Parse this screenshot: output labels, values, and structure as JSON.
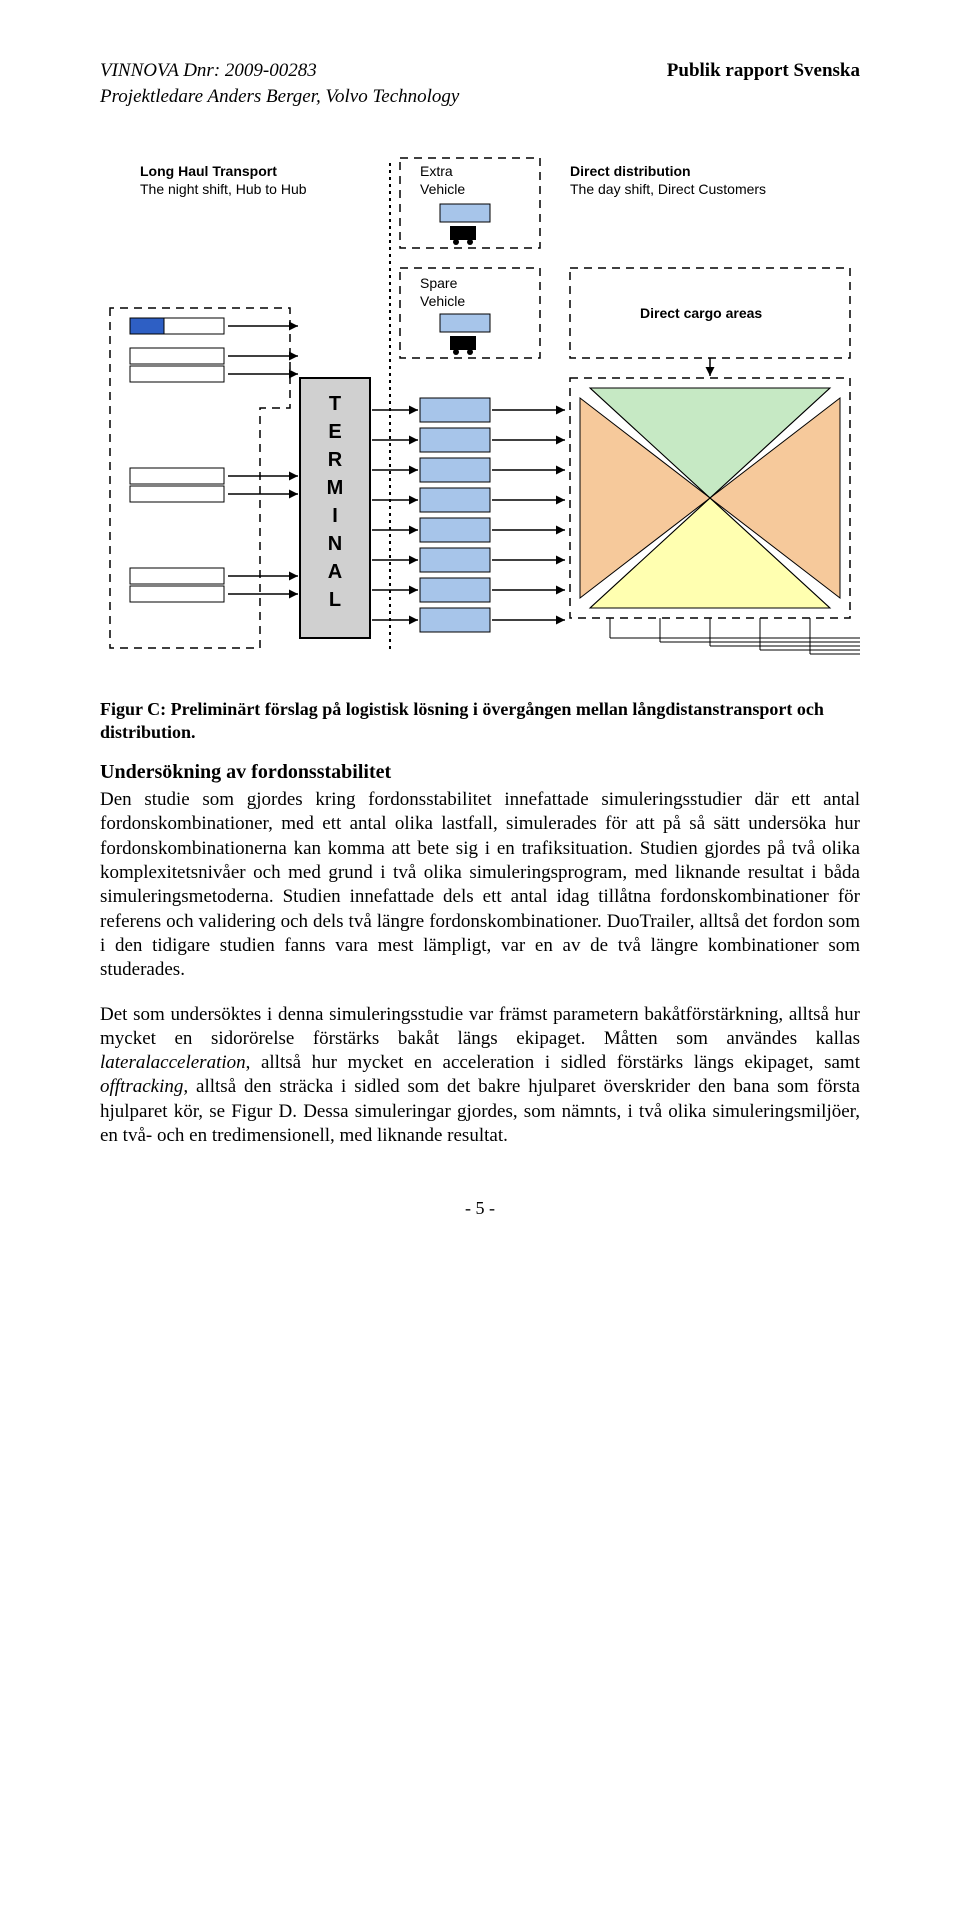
{
  "header": {
    "vinnova": "VINNOVA Dnr: 2009-00283",
    "rapport": "Publik rapport Svenska",
    "projekt": "Projektledare Anders Berger, Volvo Technology"
  },
  "diagram": {
    "labels": {
      "long_haul_1": "Long Haul Transport",
      "long_haul_2": "The night shift, Hub to Hub",
      "extra_1": "Extra",
      "extra_2": "Vehicle",
      "direct_1": "Direct distribution",
      "direct_2": "The day shift, Direct Customers",
      "spare_1": "Spare",
      "spare_2": "Vehicle",
      "cargo": "Direct cargo areas",
      "terminal_letters": [
        "T",
        "E",
        "R",
        "M",
        "I",
        "N",
        "A",
        "L"
      ]
    },
    "colors": {
      "box_fill": "#a7c5ea",
      "box_stroke": "#000000",
      "blue_cell": "#2e5fc4",
      "terminal_fill": "#d0d0d0",
      "tri_green": "#c6e9c4",
      "tri_orange": "#f5c089",
      "tri_yellow": "#ffffb0",
      "stroke": "#000000",
      "dash": "#000000"
    },
    "dash_pattern": "8 6",
    "label_fontsize": 14,
    "terminal_fontsize": 20
  },
  "caption": "Figur C: Preliminärt förslag på logistisk lösning i övergången mellan långdistanstransport och distribution.",
  "section_heading": "Undersökning av fordonsstabilitet",
  "para1": "Den studie som gjordes kring fordonsstabilitet innefattade simuleringsstudier där ett antal fordonskombinationer, med ett antal olika lastfall, simulerades för att på så sätt undersöka hur fordonskombinationerna kan komma att bete sig i en trafiksituation. Studien gjordes på två olika komplexitetsnivåer och med grund i två olika simuleringsprogram, med liknande resultat i båda simuleringsmetoderna. Studien innefattade dels ett antal idag tillåtna fordonskombinationer för referens och validering och dels två längre fordonskombinationer. DuoTrailer, alltså det fordon som i den tidigare studien fanns vara mest lämpligt, var en av de två längre kombinationer som studerades.",
  "para2_pre": "Det som undersöktes i denna simuleringsstudie var främst parametern bakåtförstärkning, alltså hur mycket en sidorörelse förstärks bakåt längs ekipaget. Måtten som användes kallas ",
  "para2_i1": "lateralacceleration",
  "para2_mid": ", alltså hur mycket en acceleration i sidled förstärks längs ekipaget, samt ",
  "para2_i2": "offtracking,",
  "para2_post": " alltså den sträcka i sidled som det bakre hjulparet överskrider den bana som första hjulparet kör, se Figur D. Dessa simuleringar gjordes, som nämnts, i två olika simuleringsmiljöer, en två- och en tredimensionell, med liknande resultat.",
  "page_num": "- 5 -"
}
